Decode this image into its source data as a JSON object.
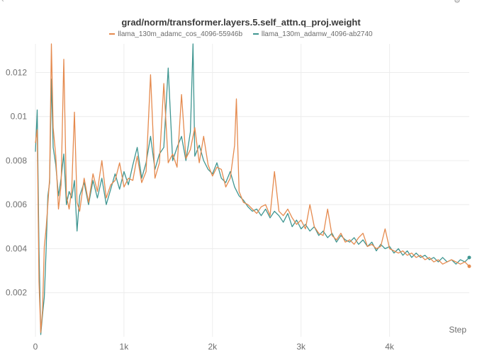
{
  "colors": {
    "series_a": "#e58a4e",
    "series_b": "#3f9691",
    "grid": "#ececec",
    "axis_text": "#6e6e6e"
  },
  "chart_data": {
    "type": "line",
    "title": "grad/norm/transformer.layers.5.self_attn.q_proj.weight",
    "xlabel": "Step",
    "ylabel": "",
    "xlim": [
      0,
      4900
    ],
    "ylim": [
      0,
      0.0133
    ],
    "x_ticks": [
      0,
      1000,
      2000,
      3000,
      4000
    ],
    "x_tick_labels": [
      "0",
      "1k",
      "2k",
      "3k",
      "4k"
    ],
    "y_ticks": [
      0.002,
      0.004,
      0.006,
      0.008,
      0.01,
      0.012
    ],
    "y_tick_labels": [
      "0.002",
      "0.004",
      "0.006",
      "0.008",
      "0.01",
      "0.012"
    ],
    "grid": true,
    "legend_position": "top-center",
    "series": [
      {
        "name": "llama_130m_adamc_cos_4096-55946b",
        "color_key": "series_a",
        "points": [
          [
            0,
            0.0088
          ],
          [
            20,
            0.0094
          ],
          [
            40,
            0.0025
          ],
          [
            60,
            0.0002
          ],
          [
            80,
            0.0012
          ],
          [
            100,
            0.0041
          ],
          [
            120,
            0.0049
          ],
          [
            140,
            0.006
          ],
          [
            160,
            0.0072
          ],
          [
            180,
            0.0133
          ],
          [
            200,
            0.0095
          ],
          [
            230,
            0.0082
          ],
          [
            260,
            0.0058
          ],
          [
            290,
            0.0069
          ],
          [
            320,
            0.0126
          ],
          [
            350,
            0.0064
          ],
          [
            380,
            0.0058
          ],
          [
            410,
            0.0067
          ],
          [
            440,
            0.0102
          ],
          [
            470,
            0.0061
          ],
          [
            500,
            0.0057
          ],
          [
            550,
            0.0072
          ],
          [
            600,
            0.0061
          ],
          [
            650,
            0.0074
          ],
          [
            700,
            0.0066
          ],
          [
            750,
            0.008
          ],
          [
            800,
            0.0063
          ],
          [
            850,
            0.0069
          ],
          [
            900,
            0.0071
          ],
          [
            950,
            0.0079
          ],
          [
            1000,
            0.0068
          ],
          [
            1050,
            0.0072
          ],
          [
            1100,
            0.0071
          ],
          [
            1150,
            0.0082
          ],
          [
            1200,
            0.007
          ],
          [
            1250,
            0.0075
          ],
          [
            1300,
            0.0119
          ],
          [
            1350,
            0.0072
          ],
          [
            1400,
            0.0079
          ],
          [
            1450,
            0.0115
          ],
          [
            1500,
            0.0079
          ],
          [
            1550,
            0.0083
          ],
          [
            1600,
            0.0077
          ],
          [
            1650,
            0.011
          ],
          [
            1700,
            0.0081
          ],
          [
            1750,
            0.0085
          ],
          [
            1800,
            0.0095
          ],
          [
            1850,
            0.0079
          ],
          [
            1900,
            0.0091
          ],
          [
            1950,
            0.0078
          ],
          [
            2000,
            0.0073
          ],
          [
            2050,
            0.0077
          ],
          [
            2100,
            0.0076
          ],
          [
            2150,
            0.0068
          ],
          [
            2200,
            0.0072
          ],
          [
            2250,
            0.0087
          ],
          [
            2270,
            0.0108
          ],
          [
            2300,
            0.0066
          ],
          [
            2350,
            0.0061
          ],
          [
            2400,
            0.006
          ],
          [
            2450,
            0.0058
          ],
          [
            2500,
            0.0056
          ],
          [
            2550,
            0.0059
          ],
          [
            2600,
            0.006
          ],
          [
            2650,
            0.0055
          ],
          [
            2700,
            0.0075
          ],
          [
            2750,
            0.0057
          ],
          [
            2800,
            0.0055
          ],
          [
            2850,
            0.0058
          ],
          [
            2900,
            0.0054
          ],
          [
            2950,
            0.0051
          ],
          [
            3000,
            0.0053
          ],
          [
            3050,
            0.0049
          ],
          [
            3100,
            0.006
          ],
          [
            3150,
            0.005
          ],
          [
            3200,
            0.0047
          ],
          [
            3250,
            0.0046
          ],
          [
            3300,
            0.0058
          ],
          [
            3350,
            0.0046
          ],
          [
            3400,
            0.0044
          ],
          [
            3450,
            0.0047
          ],
          [
            3500,
            0.0043
          ],
          [
            3550,
            0.0044
          ],
          [
            3600,
            0.0042
          ],
          [
            3650,
            0.0045
          ],
          [
            3700,
            0.0047
          ],
          [
            3750,
            0.0041
          ],
          [
            3800,
            0.0042
          ],
          [
            3850,
            0.004
          ],
          [
            3900,
            0.0041
          ],
          [
            3950,
            0.0049
          ],
          [
            4000,
            0.004
          ],
          [
            4050,
            0.0039
          ],
          [
            4100,
            0.0038
          ],
          [
            4150,
            0.0039
          ],
          [
            4200,
            0.0037
          ],
          [
            4250,
            0.0038
          ],
          [
            4300,
            0.0036
          ],
          [
            4350,
            0.0037
          ],
          [
            4400,
            0.0035
          ],
          [
            4450,
            0.0036
          ],
          [
            4500,
            0.0034
          ],
          [
            4550,
            0.0035
          ],
          [
            4600,
            0.0033
          ],
          [
            4650,
            0.0034
          ],
          [
            4700,
            0.0035
          ],
          [
            4750,
            0.0034
          ],
          [
            4800,
            0.0033
          ],
          [
            4850,
            0.0034
          ],
          [
            4900,
            0.0032
          ]
        ]
      },
      {
        "name": "llama_130m_adamw_4096-ab2740",
        "color_key": "series_b",
        "points": [
          [
            0,
            0.0084
          ],
          [
            20,
            0.0103
          ],
          [
            40,
            0.004
          ],
          [
            60,
            0.0001
          ],
          [
            80,
            0.001
          ],
          [
            100,
            0.0018
          ],
          [
            120,
            0.0039
          ],
          [
            140,
            0.0064
          ],
          [
            160,
            0.007
          ],
          [
            180,
            0.0117
          ],
          [
            200,
            0.0086
          ],
          [
            230,
            0.0078
          ],
          [
            260,
            0.0064
          ],
          [
            290,
            0.0072
          ],
          [
            320,
            0.0083
          ],
          [
            350,
            0.006
          ],
          [
            380,
            0.0066
          ],
          [
            410,
            0.0063
          ],
          [
            440,
            0.0071
          ],
          [
            470,
            0.0048
          ],
          [
            500,
            0.0064
          ],
          [
            550,
            0.007
          ],
          [
            600,
            0.006
          ],
          [
            650,
            0.0071
          ],
          [
            700,
            0.0063
          ],
          [
            750,
            0.0072
          ],
          [
            800,
            0.006
          ],
          [
            850,
            0.0067
          ],
          [
            900,
            0.0074
          ],
          [
            950,
            0.0067
          ],
          [
            1000,
            0.0075
          ],
          [
            1050,
            0.0069
          ],
          [
            1100,
            0.0078
          ],
          [
            1150,
            0.0086
          ],
          [
            1200,
            0.0072
          ],
          [
            1250,
            0.0079
          ],
          [
            1300,
            0.0091
          ],
          [
            1350,
            0.0076
          ],
          [
            1400,
            0.0083
          ],
          [
            1450,
            0.0086
          ],
          [
            1500,
            0.0122
          ],
          [
            1550,
            0.008
          ],
          [
            1600,
            0.0086
          ],
          [
            1650,
            0.0091
          ],
          [
            1700,
            0.008
          ],
          [
            1750,
            0.0093
          ],
          [
            1780,
            0.0133
          ],
          [
            1800,
            0.0082
          ],
          [
            1850,
            0.0087
          ],
          [
            1900,
            0.008
          ],
          [
            1950,
            0.0076
          ],
          [
            2000,
            0.0074
          ],
          [
            2050,
            0.0079
          ],
          [
            2100,
            0.0072
          ],
          [
            2150,
            0.007
          ],
          [
            2200,
            0.0075
          ],
          [
            2250,
            0.0068
          ],
          [
            2300,
            0.0064
          ],
          [
            2350,
            0.0062
          ],
          [
            2400,
            0.0059
          ],
          [
            2450,
            0.0057
          ],
          [
            2500,
            0.0058
          ],
          [
            2550,
            0.0055
          ],
          [
            2600,
            0.0058
          ],
          [
            2650,
            0.0054
          ],
          [
            2700,
            0.0057
          ],
          [
            2750,
            0.0055
          ],
          [
            2800,
            0.0052
          ],
          [
            2850,
            0.0056
          ],
          [
            2900,
            0.005
          ],
          [
            2950,
            0.0053
          ],
          [
            3000,
            0.0049
          ],
          [
            3050,
            0.0051
          ],
          [
            3100,
            0.0048
          ],
          [
            3150,
            0.005
          ],
          [
            3200,
            0.0046
          ],
          [
            3250,
            0.0048
          ],
          [
            3300,
            0.0045
          ],
          [
            3350,
            0.0047
          ],
          [
            3400,
            0.0043
          ],
          [
            3450,
            0.0046
          ],
          [
            3500,
            0.0044
          ],
          [
            3550,
            0.0043
          ],
          [
            3600,
            0.0045
          ],
          [
            3650,
            0.0042
          ],
          [
            3700,
            0.0044
          ],
          [
            3750,
            0.0041
          ],
          [
            3800,
            0.0043
          ],
          [
            3850,
            0.0039
          ],
          [
            3900,
            0.0042
          ],
          [
            3950,
            0.004
          ],
          [
            4000,
            0.0041
          ],
          [
            4050,
            0.0038
          ],
          [
            4100,
            0.004
          ],
          [
            4150,
            0.0037
          ],
          [
            4200,
            0.0039
          ],
          [
            4250,
            0.0036
          ],
          [
            4300,
            0.0038
          ],
          [
            4350,
            0.0036
          ],
          [
            4400,
            0.0037
          ],
          [
            4450,
            0.0035
          ],
          [
            4500,
            0.0036
          ],
          [
            4550,
            0.0034
          ],
          [
            4600,
            0.0036
          ],
          [
            4650,
            0.0034
          ],
          [
            4700,
            0.0035
          ],
          [
            4750,
            0.0033
          ],
          [
            4800,
            0.0035
          ],
          [
            4850,
            0.0034
          ],
          [
            4900,
            0.0036
          ]
        ]
      }
    ]
  }
}
